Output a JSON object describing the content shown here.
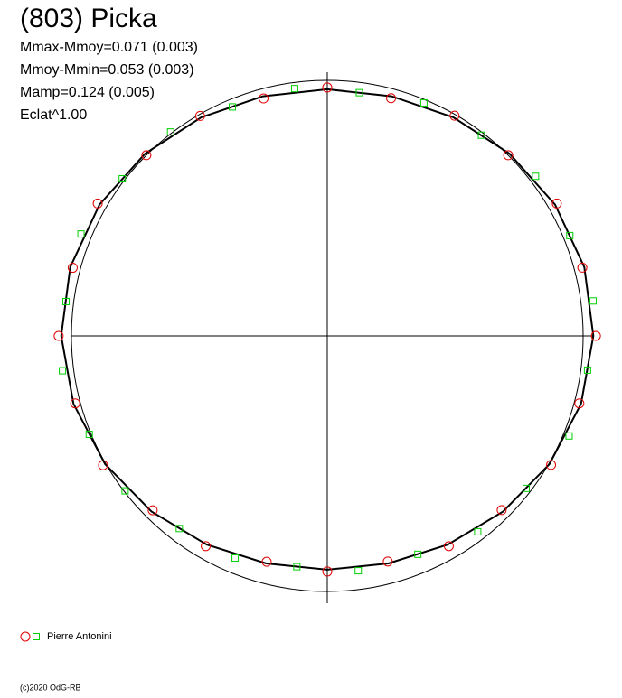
{
  "chart_data": {
    "type": "polar",
    "title": "(803) Picka",
    "annotations": [
      "Mmax-Mmoy=0.071 (0.003)",
      "Mmoy-Mmin=0.053 (0.003)",
      "Mamp=0.124 (0.005)",
      "Eclat^1.00"
    ],
    "footer": "(c)2020 OdG-RB",
    "fit": {
      "color": "#000000",
      "angle": [
        0,
        15,
        30,
        45,
        60,
        75,
        90,
        105,
        120,
        135,
        150,
        165,
        180,
        195,
        210,
        225,
        240,
        255,
        270,
        285,
        300,
        315,
        330,
        345
      ],
      "radius": [
        1.04,
        1.04,
        1.028,
        1.008,
        0.987,
        0.971,
        0.965,
        0.971,
        0.987,
        1.008,
        1.028,
        1.04,
        1.04,
        1.027,
        1.003,
        0.972,
        0.943,
        0.922,
        0.915,
        0.922,
        0.943,
        0.972,
        1.003,
        1.027
      ]
    },
    "series": [
      {
        "name": "Pierre Antonini",
        "sets": [
          {
            "marker": "circle",
            "color": "#e00000",
            "angle": [
              0,
              15,
              30,
              45,
              60,
              75,
              90,
              105,
              120,
              135,
              150,
              165,
              180,
              195,
              210,
              225,
              240,
              255,
              270,
              285,
              300,
              315,
              330,
              345
            ],
            "radius": [
              1.05,
              1.032,
              1.036,
              1.0,
              0.995,
              0.963,
              0.972,
              0.962,
              0.994,
              1.0,
              1.036,
              1.03,
              1.05,
              1.02,
              1.012,
              0.965,
              0.95,
              0.915,
              0.922,
              0.914,
              0.95,
              0.964,
              1.01,
              1.02
            ]
          },
          {
            "marker": "square",
            "color": "#00d000",
            "angle": [
              7.5,
              22.5,
              37.5,
              52.5,
              67.5,
              82.5,
              97.5,
              112.5,
              127.5,
              142.5,
              157.5,
              172.5,
              187.5,
              202.5,
              217.5,
              232.5,
              247.5,
              262.5,
              277.5,
              292.5,
              307.5,
              322.5,
              337.5,
              352.5
            ],
            "radius": [
              1.048,
              1.026,
              1.026,
              0.99,
              0.987,
              0.96,
              0.976,
              0.97,
              1.006,
              1.01,
              1.042,
              1.03,
              1.044,
              1.007,
              0.996,
              0.95,
              0.941,
              0.911,
              0.927,
              0.925,
              0.966,
              0.98,
              1.023,
              1.026
            ]
          }
        ]
      }
    ]
  }
}
